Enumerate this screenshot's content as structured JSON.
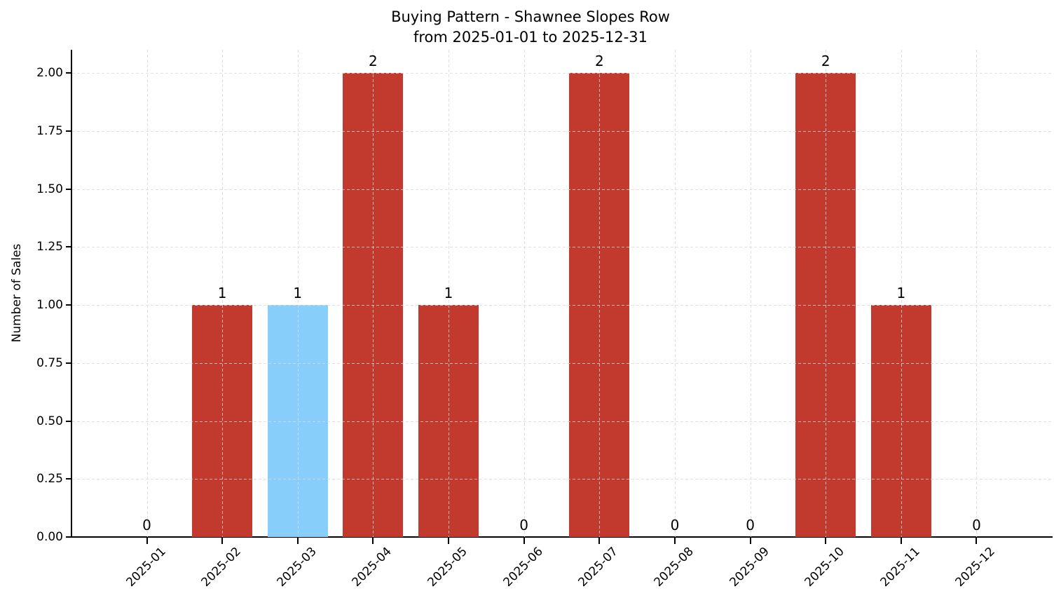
{
  "chart_data": {
    "type": "bar",
    "title": "Buying Pattern - Shawnee Slopes Row",
    "subtitle": "from 2025-01-01 to 2025-12-31",
    "xlabel": "",
    "ylabel": "Number of Sales",
    "categories": [
      "2025-01",
      "2025-02",
      "2025-03",
      "2025-04",
      "2025-05",
      "2025-06",
      "2025-07",
      "2025-08",
      "2025-09",
      "2025-10",
      "2025-11",
      "2025-12"
    ],
    "values": [
      0,
      1,
      1,
      2,
      1,
      0,
      2,
      0,
      0,
      2,
      1,
      0
    ],
    "bar_value_labels": [
      "0",
      "1",
      "1",
      "2",
      "1",
      "0",
      "2",
      "0",
      "0",
      "2",
      "1",
      "0"
    ],
    "ytick_labels": [
      "0.00",
      "0.25",
      "0.50",
      "0.75",
      "1.00",
      "1.25",
      "1.50",
      "1.75",
      "2.00"
    ],
    "ylim": [
      0,
      2.1
    ],
    "grid": "dashed",
    "legend": "none",
    "colors": {
      "bar_default": "#c23a2d",
      "bar_highlight": "#87cefa",
      "highlight_index": 2,
      "highlight_category": "2025-03",
      "grid_line": "#d9d9d9",
      "axis_line": "#000000",
      "text": "#000000",
      "background": "#ffffff"
    }
  }
}
